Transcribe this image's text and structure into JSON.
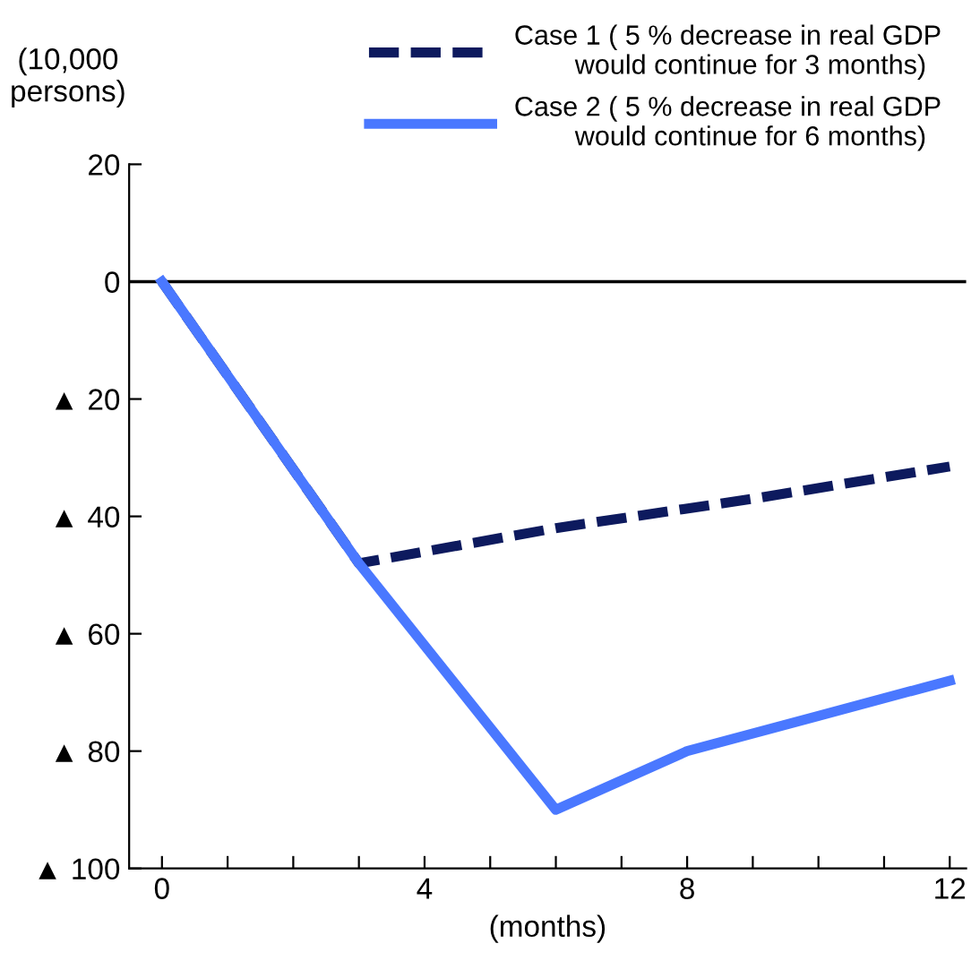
{
  "chart_data": {
    "type": "line",
    "ylabel": "(10,000\npersons)",
    "xlabel": "(months)",
    "series": [
      {
        "name": "Case 1 ( 5 % decrease in real GDP\n        would continue for 3 months)",
        "color": "#0d1a5e",
        "line_style": "dashed",
        "x": [
          0,
          3,
          6,
          9,
          12
        ],
        "values": [
          0,
          -48,
          -42,
          -37,
          -31.5
        ]
      },
      {
        "name": "Case 2 ( 5 % decrease in real GDP\n        would continue for 6 months)",
        "color": "#4a78ff",
        "line_style": "solid",
        "x": [
          0,
          3,
          6,
          8,
          10,
          11,
          12
        ],
        "values": [
          0,
          -48,
          -90,
          -80,
          -74,
          -71,
          -68
        ]
      }
    ],
    "xlim": [
      -0.5,
      12.25
    ],
    "xticks": [
      0,
      {
        "value": 1,
        "label": null
      },
      {
        "value": 2,
        "label": null
      },
      {
        "value": 3,
        "label": null
      },
      4,
      {
        "value": 5,
        "label": null
      },
      {
        "value": 6,
        "label": null
      },
      {
        "value": 7,
        "label": null
      },
      8,
      {
        "value": 9,
        "label": null
      },
      {
        "value": 10,
        "label": null
      },
      {
        "value": 11,
        "label": null
      },
      12
    ],
    "ylim": [
      -100,
      20
    ],
    "yticks": [
      20,
      0,
      {
        "value": -20,
        "label": "▲ 20"
      },
      {
        "value": -40,
        "label": "▲ 40"
      },
      {
        "value": -60,
        "label": "▲ 60"
      },
      {
        "value": -80,
        "label": "▲ 80"
      },
      {
        "value": -100,
        "label": "▲ 100"
      }
    ],
    "ref_lines": [
      {
        "axis": "y",
        "value": 0,
        "color": "#000000",
        "line_style": "solid"
      }
    ],
    "grid": false,
    "legend": "top",
    "marker": "none"
  }
}
